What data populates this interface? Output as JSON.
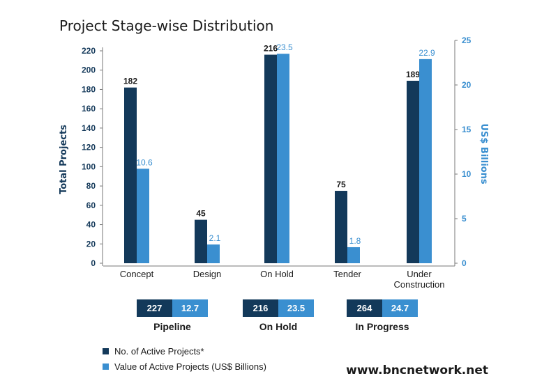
{
  "colors": {
    "projects": "#13395a",
    "value": "#3a8fd0",
    "axis_left": "#14395a",
    "axis_right": "#3a8fd0"
  },
  "footer": "www.bncnetwork.net",
  "chart_data": {
    "type": "bar",
    "title": "Project Stage-wise Distribution",
    "categories": [
      "Concept",
      "Design",
      "On Hold",
      "Tender",
      "Under Construction"
    ],
    "category_lines": [
      [
        "Concept"
      ],
      [
        "Design"
      ],
      [
        "On Hold"
      ],
      [
        "Tender"
      ],
      [
        "Under",
        "Construction"
      ]
    ],
    "ylabel": "Total  Projects",
    "y2label": "US$ Billions",
    "ylim": [
      0,
      220
    ],
    "y2lim": [
      0,
      25
    ],
    "yticks": [
      0,
      20,
      40,
      60,
      80,
      100,
      120,
      140,
      160,
      180,
      200,
      220
    ],
    "y2ticks": [
      0,
      5,
      10,
      15,
      20,
      25
    ],
    "series": [
      {
        "name": "No. of Active Projects*",
        "axis": "left",
        "values": [
          182,
          45,
          216,
          75,
          189
        ],
        "labels": [
          "182",
          "45",
          "216",
          "75",
          "189"
        ]
      },
      {
        "name": "Value of Active Projects (US$ Billions)",
        "axis": "right",
        "values": [
          10.6,
          2.1,
          23.5,
          1.8,
          22.9
        ],
        "labels": [
          "10.6",
          "2.1",
          "23.5",
          "1.8",
          "22.9"
        ]
      }
    ],
    "grid": false,
    "legend_position": "bottom-left",
    "summary": [
      {
        "label": "Pipeline",
        "projects": "227",
        "value": "12.7"
      },
      {
        "label": "On Hold",
        "projects": "216",
        "value": "23.5"
      },
      {
        "label": "In Progress",
        "projects": "264",
        "value": "24.7"
      }
    ]
  }
}
